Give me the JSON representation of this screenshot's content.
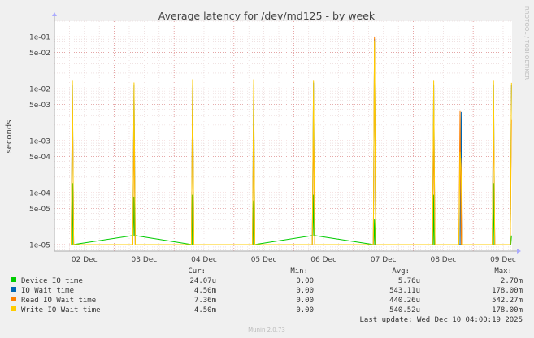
{
  "chart_data": {
    "type": "line",
    "title": "Average latency for /dev/md125 - by week",
    "ylabel": "seconds",
    "y_scale": "log",
    "ylim": [
      7.5e-06,
      0.2
    ],
    "grid": true,
    "watermark": "RRDTOOL / TOBI OETIKER",
    "y_ticks": [
      {
        "value": 0.1,
        "label": "1e-01"
      },
      {
        "value": 0.05,
        "label": "5e-02"
      },
      {
        "value": 0.01,
        "label": "1e-02"
      },
      {
        "value": 0.005,
        "label": "5e-03"
      },
      {
        "value": 0.001,
        "label": "1e-03"
      },
      {
        "value": 0.0005,
        "label": "5e-04"
      },
      {
        "value": 0.0001,
        "label": "1e-04"
      },
      {
        "value": 5e-05,
        "label": "5e-05"
      },
      {
        "value": 1e-05,
        "label": "1e-05"
      }
    ],
    "xlim": [
      0,
      7.65
    ],
    "x_ticks": [
      {
        "value": 0.5,
        "label": "02 Dec"
      },
      {
        "value": 1.5,
        "label": "03 Dec"
      },
      {
        "value": 2.5,
        "label": "04 Dec"
      },
      {
        "value": 3.5,
        "label": "05 Dec"
      },
      {
        "value": 4.5,
        "label": "06 Dec"
      },
      {
        "value": 5.5,
        "label": "07 Dec"
      },
      {
        "value": 6.5,
        "label": "08 Dec"
      },
      {
        "value": 7.5,
        "label": "09 Dec"
      }
    ],
    "day_boundaries": [
      1,
      2,
      3,
      4,
      5,
      6,
      7
    ],
    "series": [
      {
        "name": "Device IO time",
        "color": "#00cc00",
        "points": [
          [
            0.29,
            1e-05
          ],
          [
            0.3,
            0.00015
          ],
          [
            0.31,
            1e-05
          ],
          [
            1.32,
            1.5e-05
          ],
          [
            1.33,
            8e-05
          ],
          [
            1.34,
            1.5e-05
          ],
          [
            2.3,
            1e-05
          ],
          [
            2.31,
            9e-05
          ],
          [
            2.32,
            1e-05
          ],
          [
            3.32,
            1e-05
          ],
          [
            3.33,
            7e-05
          ],
          [
            3.34,
            1e-05
          ],
          [
            4.32,
            1.5e-05
          ],
          [
            4.33,
            9e-05
          ],
          [
            4.34,
            1.5e-05
          ],
          [
            5.34,
            1e-05
          ],
          [
            5.35,
            3e-05
          ],
          [
            5.36,
            1e-05
          ],
          [
            6.33,
            1e-05
          ],
          [
            6.34,
            9e-05
          ],
          [
            6.35,
            1e-05
          ],
          [
            7.33,
            1e-05
          ],
          [
            7.34,
            0.00015
          ],
          [
            7.35,
            1e-05
          ],
          [
            7.63,
            1e-05
          ],
          [
            7.64,
            1.5e-05
          ]
        ]
      },
      {
        "name": "IO Wait time",
        "color": "#0066b3",
        "points": [
          [
            0.28,
            1e-05
          ],
          [
            0.3,
            0.012
          ],
          [
            0.32,
            1e-05
          ],
          [
            1.31,
            1e-05
          ],
          [
            1.33,
            0.012
          ],
          [
            1.35,
            1e-05
          ],
          [
            2.29,
            1e-05
          ],
          [
            2.31,
            0.013
          ],
          [
            2.33,
            1e-05
          ],
          [
            3.31,
            1e-05
          ],
          [
            3.33,
            0.012
          ],
          [
            3.35,
            1e-05
          ],
          [
            4.31,
            1e-05
          ],
          [
            4.33,
            0.013
          ],
          [
            4.35,
            1e-05
          ],
          [
            5.33,
            1e-05
          ],
          [
            5.35,
            0.09
          ],
          [
            5.37,
            1e-05
          ],
          [
            6.32,
            1e-05
          ],
          [
            6.34,
            0.012
          ],
          [
            6.36,
            1e-05
          ],
          [
            6.78,
            1e-05
          ],
          [
            6.8,
            0.0035
          ],
          [
            6.82,
            1e-05
          ],
          [
            7.32,
            1e-05
          ],
          [
            7.34,
            0.012
          ],
          [
            7.36,
            1e-05
          ],
          [
            7.62,
            1e-05
          ],
          [
            7.64,
            0.012
          ]
        ]
      },
      {
        "name": "Read IO Wait time",
        "color": "#ff8000",
        "points": [
          [
            0.28,
            1e-05
          ],
          [
            0.3,
            0.007
          ],
          [
            0.32,
            1e-05
          ],
          [
            1.31,
            1e-05
          ],
          [
            1.33,
            0.0016
          ],
          [
            1.35,
            1e-05
          ],
          [
            2.29,
            1e-05
          ],
          [
            2.31,
            0.006
          ],
          [
            2.33,
            1e-05
          ],
          [
            3.31,
            1e-05
          ],
          [
            3.33,
            0.003
          ],
          [
            3.35,
            1e-05
          ],
          [
            4.31,
            1e-05
          ],
          [
            4.33,
            0.0025
          ],
          [
            4.35,
            1e-05
          ],
          [
            5.33,
            1e-05
          ],
          [
            5.35,
            0.098
          ],
          [
            5.37,
            1e-05
          ],
          [
            6.32,
            1e-05
          ],
          [
            6.34,
            0.0015
          ],
          [
            6.36,
            1e-05
          ],
          [
            6.76,
            1e-05
          ],
          [
            6.78,
            0.0038
          ],
          [
            6.8,
            1e-05
          ],
          [
            6.81,
            0.00045
          ],
          [
            6.82,
            1e-05
          ],
          [
            7.32,
            1e-05
          ],
          [
            7.34,
            0.003
          ],
          [
            7.36,
            1e-05
          ],
          [
            7.62,
            1e-05
          ],
          [
            7.64,
            0.0025
          ]
        ]
      },
      {
        "name": "Write IO Wait time",
        "color": "#ffcc00",
        "points": [
          [
            0.28,
            1e-05
          ],
          [
            0.3,
            0.014
          ],
          [
            0.32,
            1e-05
          ],
          [
            1.31,
            1e-05
          ],
          [
            1.33,
            0.013
          ],
          [
            1.35,
            1e-05
          ],
          [
            2.29,
            1e-05
          ],
          [
            2.31,
            0.015
          ],
          [
            2.33,
            1e-05
          ],
          [
            3.31,
            1e-05
          ],
          [
            3.33,
            0.015
          ],
          [
            3.35,
            1e-05
          ],
          [
            4.31,
            1e-05
          ],
          [
            4.33,
            0.014
          ],
          [
            4.35,
            1e-05
          ],
          [
            5.33,
            1e-05
          ],
          [
            5.35,
            0.08
          ],
          [
            5.37,
            1e-05
          ],
          [
            6.32,
            1e-05
          ],
          [
            6.34,
            0.014
          ],
          [
            6.36,
            1e-05
          ],
          [
            6.76,
            1e-05
          ],
          [
            6.78,
            0.0006
          ],
          [
            6.8,
            0.0002
          ],
          [
            6.82,
            1e-05
          ],
          [
            7.32,
            1e-05
          ],
          [
            7.34,
            0.014
          ],
          [
            7.36,
            1e-05
          ],
          [
            7.62,
            1e-05
          ],
          [
            7.64,
            0.013
          ]
        ]
      }
    ]
  },
  "legend": {
    "headers": {
      "cur": "Cur:",
      "min": "Min:",
      "avg": "Avg:",
      "max": "Max:"
    },
    "rows": [
      {
        "name": "Device IO time",
        "color": "#00cc00",
        "cur": "24.07u",
        "min": "0.00",
        "avg": "5.76u",
        "max": "2.70m"
      },
      {
        "name": "IO Wait time",
        "color": "#0066b3",
        "cur": "4.50m",
        "min": "0.00",
        "avg": "543.11u",
        "max": "178.00m"
      },
      {
        "name": "Read IO Wait time",
        "color": "#ff8000",
        "cur": "7.36m",
        "min": "0.00",
        "avg": "440.26u",
        "max": "542.27m"
      },
      {
        "name": "Write IO Wait time",
        "color": "#ffcc00",
        "cur": "4.50m",
        "min": "0.00",
        "avg": "540.52u",
        "max": "178.00m"
      }
    ],
    "last_update": "Last update: Wed Dec 10 04:00:19 2025"
  },
  "footer": "Munin 2.0.73"
}
